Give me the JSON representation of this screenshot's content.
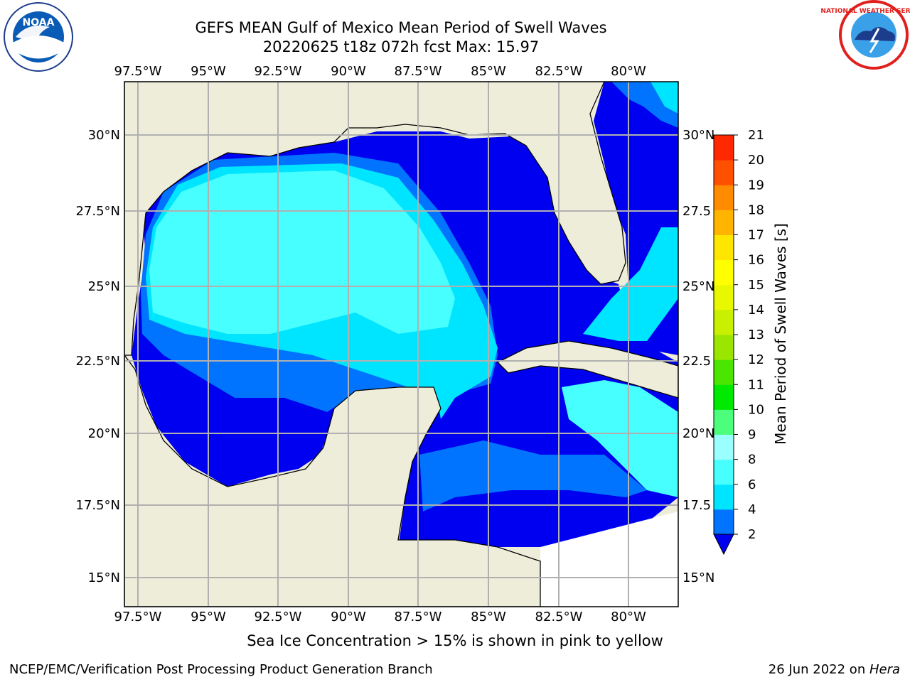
{
  "title_line1": "GEFS MEAN Gulf of Mexico Mean Period of Swell Waves",
  "title_line2": "20220625 t18z 072h fcst   Max: 15.97",
  "lon_labels": [
    "97.5°W",
    "95°W",
    "92.5°W",
    "90°W",
    "87.5°W",
    "85°W",
    "82.5°W",
    "80°W"
  ],
  "lat_labels_left": [
    "30°N",
    "27.5°N",
    "25°N",
    "22.5°N",
    "20°N",
    "17.5°N",
    "15°N"
  ],
  "lat_labels_right": [
    "30°N",
    "27.5",
    "25°N",
    "22.5",
    "20°N",
    "17.5",
    "15°N"
  ],
  "colorbar": {
    "label": "Mean Period of Swell Waves [s]",
    "ticks": [
      "2",
      "4",
      "6",
      "8",
      "9",
      "10",
      "11",
      "12",
      "13",
      "14",
      "15",
      "16",
      "17",
      "18",
      "19",
      "20",
      "21"
    ],
    "colors": [
      "#0000f0",
      "#0073ff",
      "#00e5ff",
      "#48ffff",
      "#9bffff",
      "#4bff7d",
      "#00ea00",
      "#4be600",
      "#9be600",
      "#c8f000",
      "#e8f800",
      "#ffff00",
      "#ffe600",
      "#ffb400",
      "#ff8c00",
      "#ff5000",
      "#ff2800",
      "#ff0000"
    ]
  },
  "colors": {
    "land": "#eeedda",
    "ocean_blue": "#0000f0",
    "ocean_mid": "#0073ff",
    "ocean_cyan": "#00e5ff",
    "ocean_light": "#48ffff",
    "ice_yellow": "#ffff00",
    "ice_green_yellow": "#e8f800"
  },
  "note": "Sea Ice Concentration > 15% is shown in pink to yellow",
  "footer_left": "NCEP/EMC/Verification Post Processing Product Generation Branch",
  "footer_right_prefix": "26 Jun 2022 on ",
  "footer_right_host": "Hera",
  "logo_left": "noaa-logo",
  "logo_right": "nws-logo",
  "logo_left_text": "NOAA",
  "logo_right_text": "NATIONAL WEATHER SERVICE"
}
